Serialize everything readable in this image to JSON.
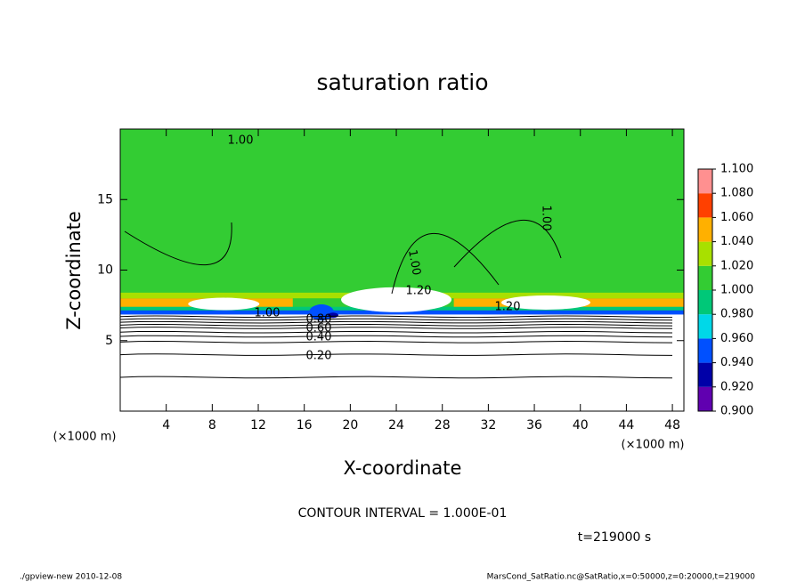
{
  "chart_data": {
    "type": "contour",
    "title": "saturation ratio",
    "x_label": "X-coordinate",
    "y_label": "Z-coordinate",
    "x_unit": "(×1000 m)",
    "y_unit": "(×1000 m)",
    "xlim": [
      0,
      49
    ],
    "xticks": [
      4,
      8,
      12,
      16,
      20,
      24,
      28,
      32,
      36,
      40,
      44,
      48
    ],
    "ylim": [
      0,
      20
    ],
    "yticks": [
      5,
      10,
      15
    ],
    "contour_labels": [
      "1.00",
      "1.00",
      "1.00",
      "1.20",
      "1.20",
      "1.00",
      "0.80",
      "0.60",
      "0.40",
      "0.20"
    ],
    "colorbar": {
      "levels": [
        {
          "value": 0.9,
          "label": "0.900"
        },
        {
          "value": 0.92,
          "label": "0.920"
        },
        {
          "value": 0.94,
          "label": "0.940"
        },
        {
          "value": 0.96,
          "label": "0.960"
        },
        {
          "value": 0.98,
          "label": "0.980"
        },
        {
          "value": 1.0,
          "label": "1.000"
        },
        {
          "value": 1.02,
          "label": "1.020"
        },
        {
          "value": 1.04,
          "label": "1.040"
        },
        {
          "value": 1.06,
          "label": "1.060"
        },
        {
          "value": 1.08,
          "label": "1.080"
        },
        {
          "value": 1.1,
          "label": "1.100"
        }
      ],
      "colors": [
        "#6000b0",
        "#0000a8",
        "#0050ff",
        "#00d8e8",
        "#00c878",
        "#33cc33",
        "#a8e000",
        "#ffb000",
        "#ff4000",
        "#ff9090"
      ]
    },
    "contour_interval": "CONTOUR INTERVAL = 1.000E-01",
    "time_label": "t=219000 s",
    "footer_left": "./gpview-new   2010-12-08",
    "footer_right": "MarsCond_SatRatio.nc@SatRatio,x=0:50000,z=0:20000,t=219000"
  }
}
